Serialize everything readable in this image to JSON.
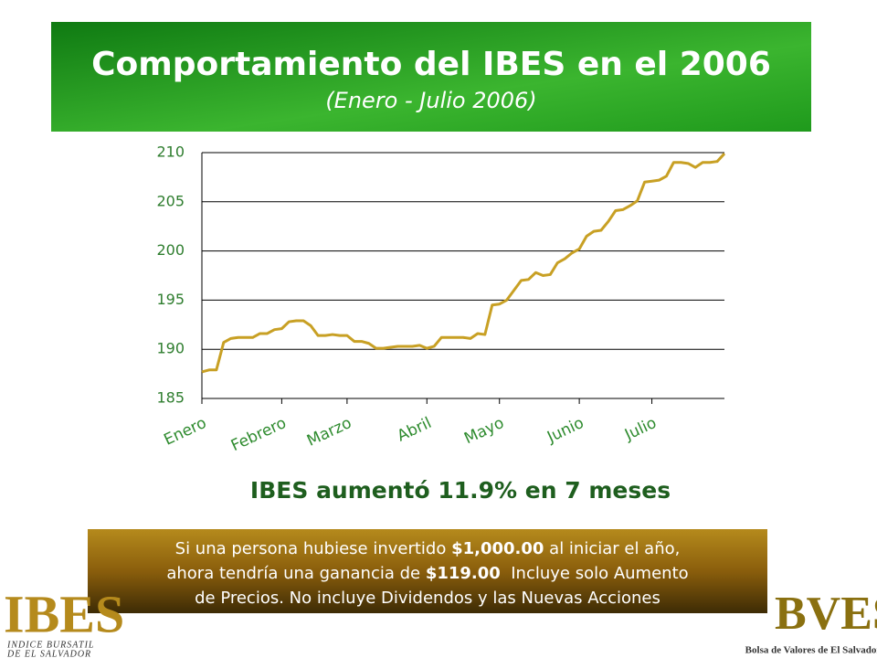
{
  "chart_data": {
    "type": "line",
    "title": "Comportamiento del IBES en el 2006",
    "subtitle": "(Enero - Julio 2006)",
    "xlim": [
      0,
      72
    ],
    "xticks": [
      {
        "value": 0,
        "label": "Enero"
      },
      {
        "value": 11,
        "label": "Febrero"
      },
      {
        "value": 20,
        "label": "Marzo"
      },
      {
        "value": 31,
        "label": "Abril"
      },
      {
        "value": 41,
        "label": "Mayo"
      },
      {
        "value": 52,
        "label": "Junio"
      },
      {
        "value": 62,
        "label": "Julio"
      }
    ],
    "ylim": [
      185,
      210
    ],
    "yticks": [
      185,
      190,
      195,
      200,
      205,
      210
    ],
    "grid": true,
    "color": "#c8a024",
    "values": [
      187.7,
      187.9,
      187.9,
      190.7,
      191.1,
      191.2,
      191.2,
      191.2,
      191.6,
      191.6,
      192.0,
      192.1,
      192.8,
      192.9,
      192.9,
      192.4,
      191.4,
      191.4,
      191.5,
      191.4,
      191.4,
      190.8,
      190.8,
      190.6,
      190.1,
      190.1,
      190.2,
      190.3,
      190.3,
      190.3,
      190.4,
      190.1,
      190.3,
      191.2,
      191.2,
      191.2,
      191.2,
      191.1,
      191.6,
      191.5,
      194.5,
      194.6,
      195.0,
      196.0,
      197.0,
      197.1,
      197.8,
      197.5,
      197.6,
      198.8,
      199.2,
      199.8,
      200.2,
      201.5,
      202.0,
      202.1,
      203.0,
      204.1,
      204.2,
      204.6,
      205.1,
      207.0,
      207.1,
      207.2,
      207.6,
      209.0,
      209.0,
      208.9,
      208.5,
      209.0,
      209.0,
      209.1,
      209.9
    ]
  },
  "headline": "IBES aumentó 11.9% en 7 meses",
  "note": [
    [
      "Si una persona hubiese invertido ",
      "$1,000.00",
      " al iniciar el año,"
    ],
    [
      "ahora tendría una ganancia de ",
      "$119.00",
      "  Incluye solo Aumento"
    ],
    [
      "de Precios. No incluye Dividendos y las Nuevas Acciones"
    ]
  ],
  "logos": {
    "left": {
      "name": "IBES",
      "caption": [
        "INDICE BURSATIL",
        "DE EL SALVADOR"
      ]
    },
    "right": {
      "name": "BVES",
      "caption": "Bolsa de Valores de El Salvador"
    }
  }
}
